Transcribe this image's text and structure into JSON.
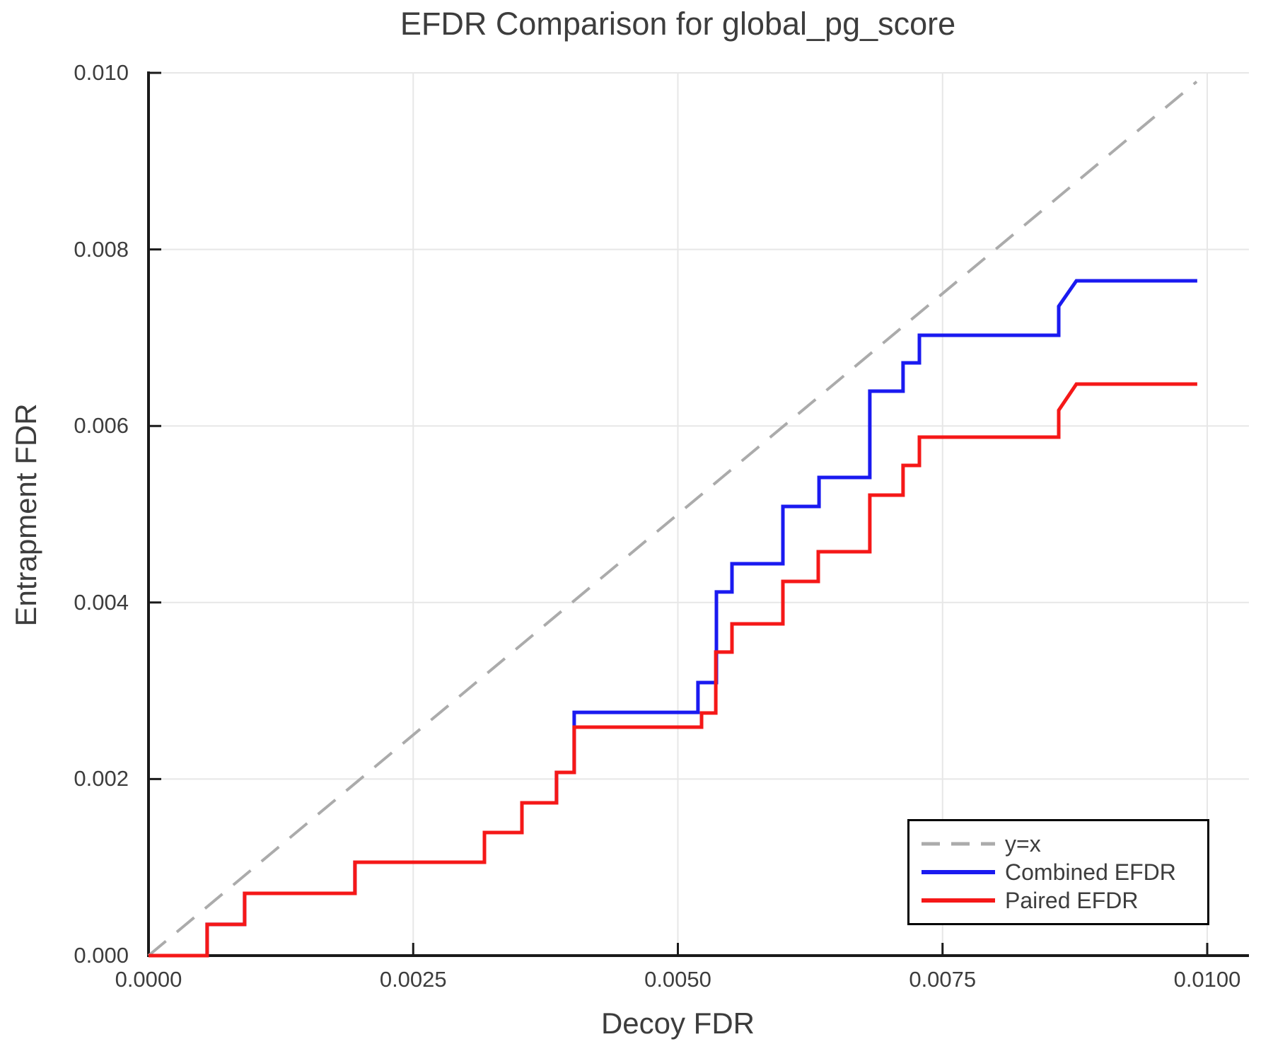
{
  "chart_data": {
    "type": "line",
    "subtype": "step-ecdf-comparison",
    "title": "EFDR Comparison for global_pg_score",
    "xlabel": "Decoy FDR",
    "ylabel": "Entrapment FDR",
    "xlim": [
      0,
      0.0104
    ],
    "ylim": [
      0,
      0.01
    ],
    "grid": true,
    "legend_position": "bottom-right",
    "x_ticks": [
      {
        "value": 0.0,
        "label": "0.0000"
      },
      {
        "value": 0.0025,
        "label": "0.0025"
      },
      {
        "value": 0.005,
        "label": "0.0050"
      },
      {
        "value": 0.0075,
        "label": "0.0075"
      },
      {
        "value": 0.01,
        "label": "0.0100"
      }
    ],
    "y_ticks": [
      {
        "value": 0.0,
        "label": "0.000"
      },
      {
        "value": 0.002,
        "label": "0.002"
      },
      {
        "value": 0.004,
        "label": "0.004"
      },
      {
        "value": 0.006,
        "label": "0.006"
      },
      {
        "value": 0.008,
        "label": "0.008"
      },
      {
        "value": 0.01,
        "label": "0.010"
      }
    ],
    "series": [
      {
        "name": "y=x",
        "style": "dashed",
        "color": "#ababab",
        "width": 4,
        "points": [
          [
            0,
            0
          ],
          [
            0.0099,
            0.0099
          ]
        ]
      },
      {
        "name": "Combined EFDR",
        "style": "solid",
        "color": "#1a1af0",
        "width": 5,
        "points": [
          [
            0,
            0
          ],
          [
            0.000554,
            0
          ],
          [
            0.000554,
            0.000353
          ],
          [
            0.000908,
            0.000353
          ],
          [
            0.000908,
            0.000705
          ],
          [
            0.00195,
            0.000705
          ],
          [
            0.00195,
            0.001058
          ],
          [
            0.003173,
            0.001058
          ],
          [
            0.003173,
            0.001394
          ],
          [
            0.003527,
            0.001394
          ],
          [
            0.003527,
            0.001731
          ],
          [
            0.003854,
            0.001731
          ],
          [
            0.003854,
            0.002075
          ],
          [
            0.004021,
            0.002075
          ],
          [
            0.004021,
            0.002756
          ],
          [
            0.00519,
            0.002756
          ],
          [
            0.00519,
            0.003093
          ],
          [
            0.005364,
            0.003093
          ],
          [
            0.005364,
            0.004119
          ],
          [
            0.005511,
            0.004119
          ],
          [
            0.005511,
            0.004439
          ],
          [
            0.005992,
            0.004439
          ],
          [
            0.005992,
            0.005088
          ],
          [
            0.006333,
            0.005088
          ],
          [
            0.006333,
            0.005417
          ],
          [
            0.006813,
            0.005417
          ],
          [
            0.006813,
            0.006394
          ],
          [
            0.007127,
            0.006394
          ],
          [
            0.007127,
            0.006715
          ],
          [
            0.007281,
            0.006715
          ],
          [
            0.007281,
            0.007027
          ],
          [
            0.008597,
            0.007027
          ],
          [
            0.008597,
            0.007356
          ],
          [
            0.008764,
            0.007644
          ],
          [
            0.009906,
            0.007644
          ]
        ]
      },
      {
        "name": "Paired EFDR",
        "style": "solid",
        "color": "#f51818",
        "width": 5,
        "points": [
          [
            0,
            0
          ],
          [
            0.000554,
            0
          ],
          [
            0.000554,
            0.000353
          ],
          [
            0.000908,
            0.000353
          ],
          [
            0.000908,
            0.000705
          ],
          [
            0.00195,
            0.000705
          ],
          [
            0.00195,
            0.001058
          ],
          [
            0.003173,
            0.001058
          ],
          [
            0.003173,
            0.001394
          ],
          [
            0.003527,
            0.001394
          ],
          [
            0.003527,
            0.001731
          ],
          [
            0.003854,
            0.001731
          ],
          [
            0.003854,
            0.002075
          ],
          [
            0.004021,
            0.002075
          ],
          [
            0.004021,
            0.002588
          ],
          [
            0.005224,
            0.002588
          ],
          [
            0.005224,
            0.002748
          ],
          [
            0.005358,
            0.002748
          ],
          [
            0.005358,
            0.003438
          ],
          [
            0.005511,
            0.003438
          ],
          [
            0.005511,
            0.003758
          ],
          [
            0.005992,
            0.003758
          ],
          [
            0.005992,
            0.004239
          ],
          [
            0.006326,
            0.004239
          ],
          [
            0.006326,
            0.004575
          ],
          [
            0.006813,
            0.004575
          ],
          [
            0.006813,
            0.005216
          ],
          [
            0.007127,
            0.005216
          ],
          [
            0.007127,
            0.005553
          ],
          [
            0.007281,
            0.005553
          ],
          [
            0.007281,
            0.005873
          ],
          [
            0.008597,
            0.005873
          ],
          [
            0.008597,
            0.006178
          ],
          [
            0.008764,
            0.006474
          ],
          [
            0.009906,
            0.006474
          ]
        ]
      }
    ],
    "colors": {
      "grid": "#e7e7e7",
      "spine": "#1a1a1a",
      "text": "#3d3d3d",
      "diagonal": "#ababab",
      "combined": "#1a1af0",
      "paired": "#f51818"
    }
  }
}
